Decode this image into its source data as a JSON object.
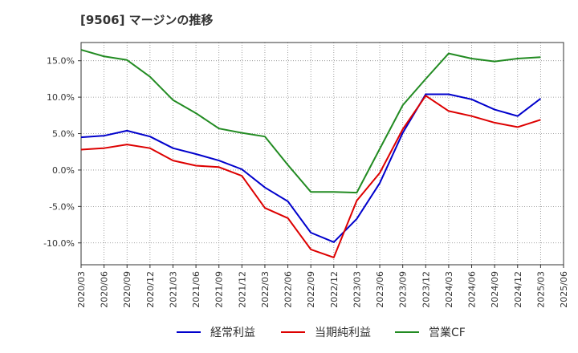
{
  "title": "[9506]  マージンの推移",
  "chart_data": {
    "type": "line",
    "x": [
      "2020/03",
      "2020/06",
      "2020/09",
      "2020/12",
      "2021/03",
      "2021/06",
      "2021/09",
      "2021/12",
      "2022/03",
      "2022/06",
      "2022/09",
      "2022/12",
      "2023/03",
      "2023/06",
      "2023/09",
      "2023/12",
      "2024/03",
      "2024/06",
      "2024/09",
      "2024/12",
      "2025/03",
      "2025/06"
    ],
    "y_ticks": [
      "15.0%",
      "10.0%",
      "5.0%",
      "0.0%",
      "-5.0%",
      "-10.0%"
    ],
    "y_tick_values": [
      15,
      10,
      5,
      0,
      -5,
      -10
    ],
    "ylim": [
      -13,
      17.5
    ],
    "grid": true,
    "legend_position": "bottom",
    "series": [
      {
        "name": "経常利益",
        "color": "#0000cc",
        "values": [
          4.5,
          4.7,
          5.4,
          4.6,
          3.0,
          2.2,
          1.3,
          0.1,
          -2.4,
          -4.3,
          -8.6,
          -9.9,
          -6.7,
          -1.8,
          5.1,
          10.4,
          10.4,
          9.7,
          8.3,
          7.4,
          9.8,
          null
        ]
      },
      {
        "name": "当期純利益",
        "color": "#dd0000",
        "values": [
          2.8,
          3.0,
          3.5,
          3.0,
          1.3,
          0.6,
          0.4,
          -0.8,
          -5.2,
          -6.6,
          -10.9,
          -12.0,
          -4.2,
          -0.4,
          5.6,
          10.2,
          8.1,
          7.4,
          6.5,
          5.9,
          6.9,
          null
        ]
      },
      {
        "name": "営業CF",
        "color": "#228b22",
        "values": [
          16.5,
          15.6,
          15.1,
          12.8,
          9.6,
          7.8,
          5.7,
          5.1,
          4.6,
          0.7,
          -3.0,
          -3.0,
          -3.1,
          2.9,
          8.9,
          12.5,
          16.0,
          15.3,
          14.9,
          15.3,
          15.5,
          null
        ]
      }
    ]
  }
}
